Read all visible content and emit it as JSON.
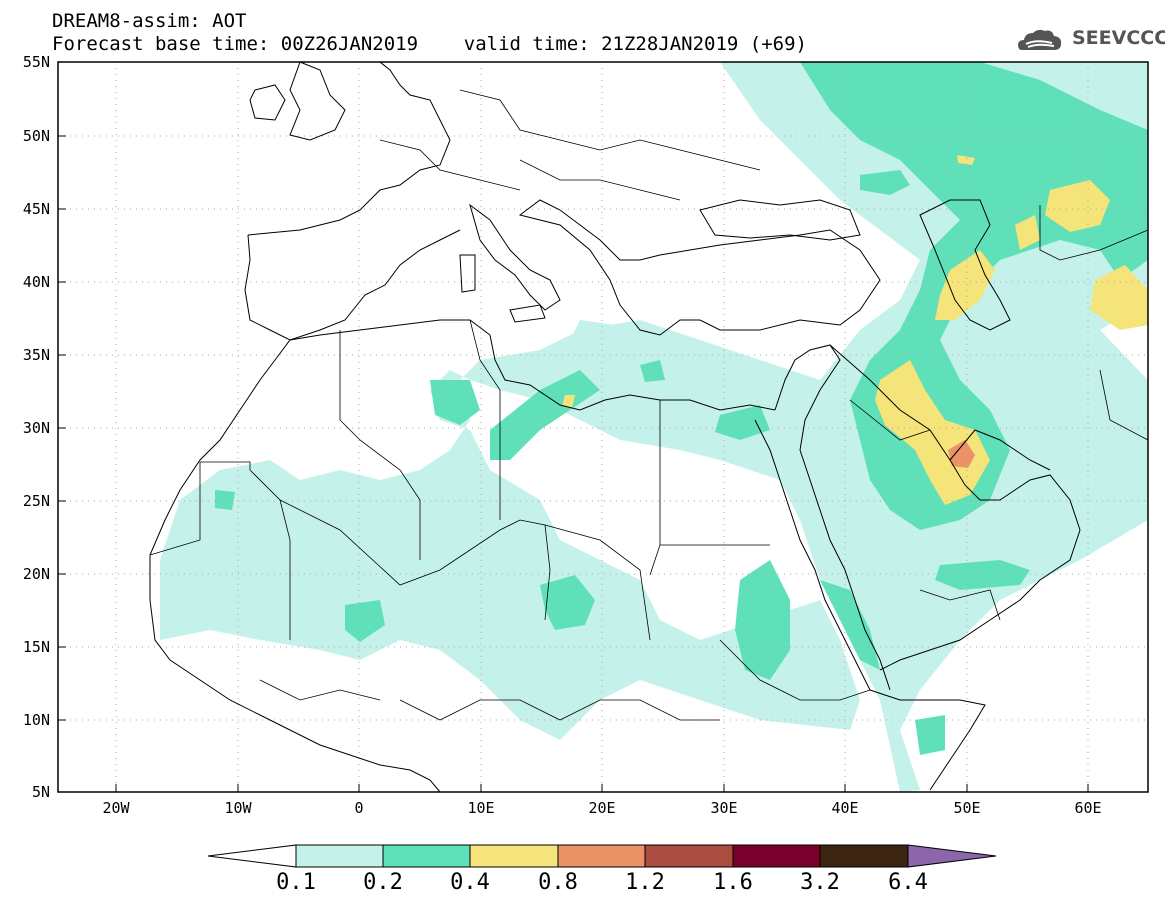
{
  "header": {
    "line1": "DREAM8-assim: AOT",
    "line2": "Forecast base time: 00Z26JAN2019    valid time: 21Z28JAN2019 (+69)",
    "logo_text": "SEEVCCC"
  },
  "map": {
    "lat_labels": [
      "55N",
      "50N",
      "45N",
      "40N",
      "35N",
      "30N",
      "25N",
      "20N",
      "15N",
      "10N",
      "5N"
    ],
    "lon_labels": [
      "20W",
      "10W",
      "0",
      "10E",
      "20E",
      "30E",
      "40E",
      "50E",
      "60E"
    ]
  },
  "colorbar": {
    "levels": [
      "0.1",
      "0.2",
      "0.4",
      "0.8",
      "1.2",
      "1.6",
      "3.2",
      "6.4"
    ],
    "colors": [
      "#c4f2ea",
      "#5fe0b8",
      "#f4e47a",
      "#eb9266",
      "#aa4c40",
      "#78002a",
      "#3c2412",
      "#8c66aa"
    ]
  }
}
